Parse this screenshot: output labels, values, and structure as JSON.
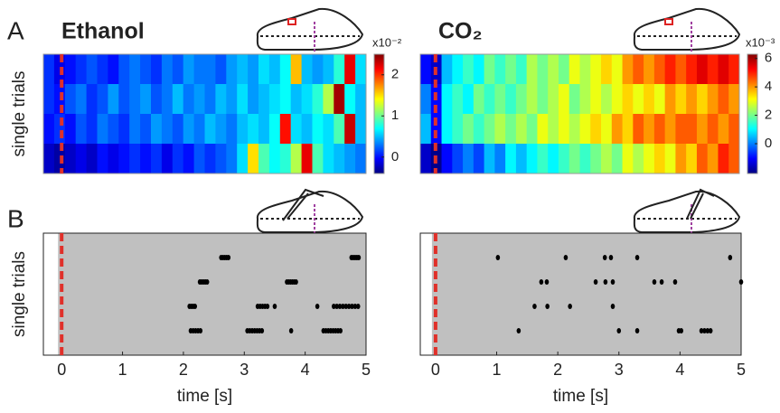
{
  "panel_labels": [
    "A",
    "B"
  ],
  "chart_data": [
    {
      "type": "heatmap",
      "title": "Ethanol",
      "ylabel": "single trials",
      "xlim": [
        -0.3,
        5
      ],
      "stimulus_time": 0,
      "zlim": [
        -0.4,
        2.5
      ],
      "colorbar_ticks": [
        0,
        1,
        2
      ],
      "colorbar_label": "x10⁻²",
      "values": [
        [
          0.1,
          -0.1,
          0,
          0.1,
          0.2,
          0.1,
          0,
          0.2,
          0.3,
          0.2,
          0.1,
          0.3,
          0.2,
          0.4,
          0.3,
          0.3,
          0.2,
          0.4,
          0.5,
          0.4,
          0.6,
          0.5,
          0.7,
          1.6,
          0.5,
          0.4,
          0.5,
          0.8,
          2.2,
          0.6
        ],
        [
          0.1,
          0,
          0.2,
          0.3,
          0.1,
          0.2,
          0.4,
          0.2,
          0.3,
          0.4,
          0.2,
          0.3,
          0.5,
          0.3,
          0.4,
          0.3,
          0.5,
          0.4,
          0.6,
          0.4,
          0.5,
          0.6,
          0.7,
          0.5,
          0.6,
          0.8,
          1.2,
          2.4,
          0.7,
          0.5
        ],
        [
          0,
          0.1,
          0,
          0.2,
          0.1,
          0.3,
          0.2,
          0.1,
          0.3,
          0.2,
          0.4,
          0.3,
          0.2,
          0.4,
          0.3,
          0.5,
          0.4,
          0.3,
          0.5,
          0.6,
          0.5,
          0.7,
          2.1,
          0.6,
          0.5,
          0.7,
          0.6,
          0.9,
          2.3,
          0.5
        ],
        [
          -0.2,
          -0.3,
          -0.2,
          -0.1,
          -0.2,
          0,
          -0.1,
          0,
          0.1,
          0,
          0.1,
          -0.1,
          0.1,
          0,
          0.2,
          0.1,
          0.2,
          0.3,
          0.6,
          1.5,
          0.9,
          0.7,
          0.8,
          1.2,
          2.2,
          0.9,
          0.6,
          0.5,
          0.4,
          0.3
        ]
      ]
    },
    {
      "type": "heatmap",
      "title": "CO₂",
      "xlim": [
        -0.25,
        5
      ],
      "stimulus_time": 0,
      "zlim": [
        -2.1,
        6.3
      ],
      "colorbar_ticks": [
        0,
        2,
        4,
        6
      ],
      "colorbar_label": "x10⁻³",
      "values": [
        [
          -1,
          -1.5,
          0.5,
          1,
          1.5,
          1,
          2,
          1.5,
          2,
          1.5,
          2.5,
          2,
          2.5,
          2,
          3,
          2.5,
          3,
          3.5,
          3,
          4,
          4.5,
          4,
          4.5,
          5,
          4.5,
          5,
          5.5,
          5,
          5.5,
          5
        ],
        [
          0,
          -1,
          1,
          1.5,
          1,
          2,
          1.5,
          2,
          1.5,
          2,
          2.5,
          2,
          2.5,
          3,
          2,
          2.5,
          3,
          2.5,
          3,
          3.5,
          3,
          3.5,
          3,
          4,
          3.5,
          4,
          3.5,
          4,
          4.5,
          4
        ],
        [
          0.5,
          -1,
          1,
          1.5,
          2,
          1.5,
          2,
          2.5,
          2,
          2.5,
          2,
          3,
          2.5,
          3,
          2.5,
          3,
          3.5,
          3,
          4,
          3.5,
          4.5,
          4,
          4.5,
          4,
          4.5,
          4.5,
          4,
          4.5,
          4,
          4.5
        ],
        [
          -1.5,
          -2,
          -1,
          -0.5,
          0,
          -0.5,
          0.5,
          0,
          1,
          0.5,
          1,
          1.5,
          1,
          1.5,
          2,
          1.5,
          2,
          2.5,
          2,
          3,
          2.5,
          3,
          3.5,
          3,
          4,
          3.5,
          4.5,
          4,
          5,
          4.5
        ]
      ]
    },
    {
      "type": "raster",
      "ylabel": "single trials",
      "xlabel": "time [s]",
      "xlim": [
        -0.3,
        5
      ],
      "xticks": [
        0,
        1,
        2,
        3,
        4,
        5
      ],
      "stimulus_time": 0,
      "spikes": [
        [
          2.62,
          2.65,
          2.68,
          2.71,
          2.74,
          4.76,
          4.79,
          4.82,
          4.85,
          4.88
        ],
        [
          2.27,
          2.3,
          2.33,
          2.36,
          2.39,
          3.7,
          3.73,
          3.76,
          3.79,
          3.82,
          3.85
        ],
        [
          2.1,
          2.13,
          2.16,
          2.19,
          3.22,
          3.26,
          3.3,
          3.34,
          3.38,
          3.5,
          4.2,
          4.47,
          4.52,
          4.57,
          4.62,
          4.67,
          4.72,
          4.77,
          4.82,
          4.87
        ],
        [
          2.12,
          2.16,
          2.2,
          2.24,
          2.28,
          3.05,
          3.09,
          3.13,
          3.17,
          3.21,
          3.25,
          3.29,
          3.77,
          4.3,
          4.34,
          4.38,
          4.42,
          4.46,
          4.5,
          4.54,
          4.58
        ]
      ]
    },
    {
      "type": "raster",
      "xlabel": "time [s]",
      "xlim": [
        -0.25,
        5
      ],
      "xticks": [
        0,
        1,
        2,
        3,
        4,
        5
      ],
      "stimulus_time": 0,
      "spikes": [
        [
          1.02,
          2.13,
          2.77,
          2.87,
          3.3,
          4.82
        ],
        [
          1.73,
          1.82,
          2.62,
          2.78,
          2.9,
          3.58,
          3.7,
          3.92,
          5.0
        ],
        [
          1.62,
          1.83,
          2.2,
          2.9
        ],
        [
          1.36,
          3.0,
          3.3,
          3.98,
          4.02,
          4.35,
          4.4,
          4.45,
          4.5
        ]
      ]
    }
  ]
}
